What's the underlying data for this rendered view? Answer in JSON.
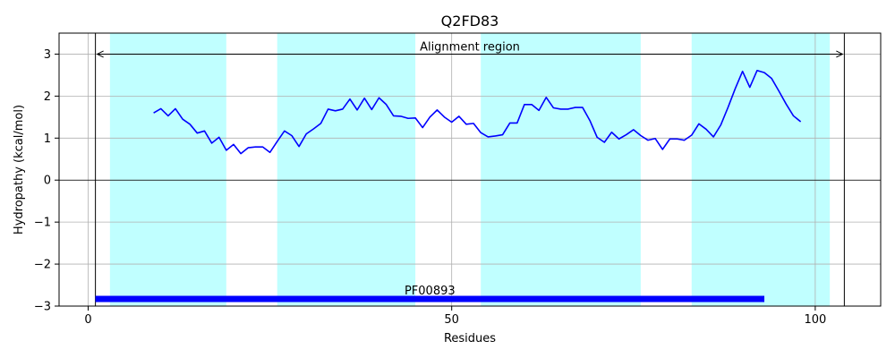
{
  "chart_data": {
    "type": "line",
    "title": "Q2FD83",
    "xlabel": "Residues",
    "ylabel": "Hydropathy (kcal/mol)",
    "xlim": [
      -4,
      109
    ],
    "ylim": [
      -3,
      3.5
    ],
    "xticks": [
      0,
      50,
      100
    ],
    "yticks": [
      3,
      2,
      1,
      0,
      -1,
      -2,
      -3
    ],
    "ytick_labels": [
      "3",
      "2",
      "1",
      "0",
      "−1",
      "−2",
      "−3"
    ],
    "grid": true,
    "line_color": "#0000ff",
    "highlight_color": "#c0ffff",
    "series": [
      {
        "x": [
          9,
          10,
          11,
          12,
          13,
          14,
          15,
          16,
          17,
          18,
          19,
          20,
          21,
          22,
          23,
          24,
          25,
          26,
          27,
          28,
          29,
          30,
          31,
          32,
          33,
          34,
          35,
          36,
          37,
          38,
          39,
          40,
          41,
          42,
          43,
          44,
          45,
          46,
          47,
          48,
          49,
          50,
          51,
          52,
          53,
          54,
          55,
          56,
          57,
          58,
          59,
          60,
          61,
          62,
          63,
          64,
          65,
          66,
          67,
          68,
          69,
          70,
          71,
          72,
          73,
          74,
          75,
          76,
          77,
          78,
          79,
          80,
          81,
          82,
          83,
          84,
          85,
          86,
          87,
          88,
          89,
          90,
          91,
          92,
          93,
          94,
          95,
          96,
          97,
          98
        ],
        "values": [
          1.6,
          1.7,
          1.53,
          1.7,
          1.45,
          1.33,
          1.12,
          1.17,
          0.88,
          1.02,
          0.71,
          0.85,
          0.63,
          0.77,
          0.79,
          0.79,
          0.66,
          0.92,
          1.17,
          1.06,
          0.8,
          1.1,
          1.22,
          1.35,
          1.69,
          1.65,
          1.69,
          1.93,
          1.67,
          1.95,
          1.68,
          1.96,
          1.8,
          1.53,
          1.52,
          1.47,
          1.48,
          1.25,
          1.5,
          1.67,
          1.5,
          1.38,
          1.52,
          1.33,
          1.35,
          1.13,
          1.03,
          1.05,
          1.08,
          1.36,
          1.36,
          1.8,
          1.8,
          1.66,
          1.97,
          1.72,
          1.69,
          1.69,
          1.73,
          1.73,
          1.42,
          1.02,
          0.9,
          1.14,
          0.98,
          1.08,
          1.2,
          1.06,
          0.95,
          0.99,
          0.73,
          0.98,
          0.98,
          0.95,
          1.07,
          1.34,
          1.21,
          1.03,
          1.31,
          1.73,
          2.18,
          2.59,
          2.21,
          2.61,
          2.56,
          2.42,
          2.12,
          1.81,
          1.53,
          1.39
        ]
      }
    ],
    "highlight_regions": [
      [
        3,
        19
      ],
      [
        26,
        45
      ],
      [
        54,
        76
      ],
      [
        83,
        102
      ]
    ],
    "alignment_region": {
      "start": 1,
      "end": 104,
      "label": "Alignment region",
      "y": 3.0
    },
    "domains": [
      {
        "name": "PF00893",
        "start": 1,
        "end": 93,
        "y": -2.83,
        "color": "#0000ff"
      }
    ]
  }
}
